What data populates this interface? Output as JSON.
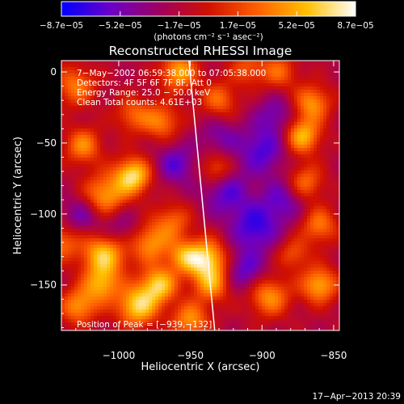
{
  "chart_data": {
    "type": "heatmap",
    "title": "Reconstructed RHESSI Image",
    "xlabel": "Heliocentric X (arcsec)",
    "ylabel": "Heliocentric Y (arcsec)",
    "xlim": [
      -1040,
      -846
    ],
    "ylim": [
      -182,
      8
    ],
    "x_ticks": [
      -1000,
      -950,
      -900,
      -850
    ],
    "y_ticks": [
      0,
      -50,
      -100,
      -150
    ],
    "x_tick_labels": [
      "−1000",
      "−950",
      "−900",
      "−850"
    ],
    "y_tick_labels": [
      "0",
      "−50",
      "−100",
      "−150"
    ],
    "colorbar": {
      "min": -8.7e-05,
      "max": 8.7e-05,
      "tick_labels": [
        "−8.7e−05",
        "−5.2e−05",
        "−1.7e−05",
        "1.7e−05",
        "5.2e−05",
        "8.7e−05"
      ],
      "unit": "(photons cm⁻² s⁻¹ asec⁻²)",
      "colormap": [
        "#0000ff",
        "#6a00c8",
        "#a00060",
        "#d01000",
        "#ff6000",
        "#ffc000",
        "#ffffff"
      ]
    },
    "annotations": [
      "7−May−2002 06:59:38.000 to 07:05:38.000",
      "Detectors: 4F 5F 6F 7F 8F, Att 0",
      "Energy Range: 25.0 − 50.0 keV",
      "Clean     Total counts: 4.61E+03"
    ],
    "peak_label": "Position of Peak = [−939,−132]",
    "peak": [
      -939,
      -132
    ],
    "limb_line": [
      [
        -951,
        8
      ],
      [
        -933,
        -182
      ]
    ],
    "sources": [
      {
        "x": -1010,
        "y": -88,
        "v": 0.8,
        "s": 11
      },
      {
        "x": -990,
        "y": -73,
        "v": 1.0,
        "s": 9
      },
      {
        "x": -1010,
        "y": -128,
        "v": 0.95,
        "s": 11
      },
      {
        "x": -1012,
        "y": -150,
        "v": 0.7,
        "s": 9
      },
      {
        "x": -1028,
        "y": -165,
        "v": 0.7,
        "s": 9
      },
      {
        "x": -987,
        "y": -165,
        "v": 0.95,
        "s": 10
      },
      {
        "x": -972,
        "y": -150,
        "v": 0.9,
        "s": 9
      },
      {
        "x": -978,
        "y": -120,
        "v": 0.7,
        "s": 10
      },
      {
        "x": -962,
        "y": -105,
        "v": 0.5,
        "s": 9
      },
      {
        "x": -955,
        "y": -130,
        "v": 0.6,
        "s": 8
      },
      {
        "x": -939,
        "y": -132,
        "v": 1.0,
        "s": 10
      },
      {
        "x": -935,
        "y": -150,
        "v": 0.65,
        "s": 9
      },
      {
        "x": -950,
        "y": -175,
        "v": 0.7,
        "s": 9
      },
      {
        "x": -1025,
        "y": -52,
        "v": 0.65,
        "s": 9
      },
      {
        "x": -970,
        "y": -35,
        "v": 0.6,
        "s": 9
      },
      {
        "x": -958,
        "y": 0,
        "v": 0.8,
        "s": 9
      },
      {
        "x": -930,
        "y": -20,
        "v": 0.55,
        "s": 9
      },
      {
        "x": -932,
        "y": -68,
        "v": 0.55,
        "s": 8
      },
      {
        "x": -1030,
        "y": -10,
        "v": 0.6,
        "s": 10
      },
      {
        "x": -865,
        "y": -22,
        "v": 0.7,
        "s": 9
      },
      {
        "x": -872,
        "y": -45,
        "v": 0.85,
        "s": 9
      },
      {
        "x": -870,
        "y": -78,
        "v": 0.6,
        "s": 9
      },
      {
        "x": -860,
        "y": -108,
        "v": 0.6,
        "s": 9
      },
      {
        "x": -860,
        "y": -150,
        "v": 0.8,
        "s": 9
      },
      {
        "x": -895,
        "y": -158,
        "v": 0.7,
        "s": 10
      },
      {
        "x": -878,
        "y": -128,
        "v": 0.45,
        "s": 8
      },
      {
        "x": -910,
        "y": 3,
        "v": 0.45,
        "s": 9
      },
      {
        "x": -888,
        "y": 0,
        "v": 0.5,
        "s": 9
      },
      {
        "x": -1040,
        "y": -120,
        "v": 0.55,
        "s": 9
      },
      {
        "x": -990,
        "y": -30,
        "v": 0.5,
        "s": 9
      },
      {
        "x": -925,
        "y": -85,
        "v": -0.5,
        "s": 12
      },
      {
        "x": -905,
        "y": -110,
        "v": -0.6,
        "s": 12
      },
      {
        "x": -900,
        "y": -55,
        "v": -0.55,
        "s": 12
      },
      {
        "x": -885,
        "y": -90,
        "v": -0.45,
        "s": 11
      },
      {
        "x": -1000,
        "y": -110,
        "v": -0.4,
        "s": 11
      },
      {
        "x": -1025,
        "y": -100,
        "v": -0.45,
        "s": 10
      },
      {
        "x": -960,
        "y": -65,
        "v": -0.5,
        "s": 10
      },
      {
        "x": -912,
        "y": -140,
        "v": -0.5,
        "s": 10
      },
      {
        "x": -890,
        "y": -30,
        "v": -0.4,
        "s": 10
      },
      {
        "x": -930,
        "y": -45,
        "v": -0.35,
        "s": 10
      }
    ]
  },
  "footer": {
    "timestamp": "17−Apr−2013 20:39"
  }
}
